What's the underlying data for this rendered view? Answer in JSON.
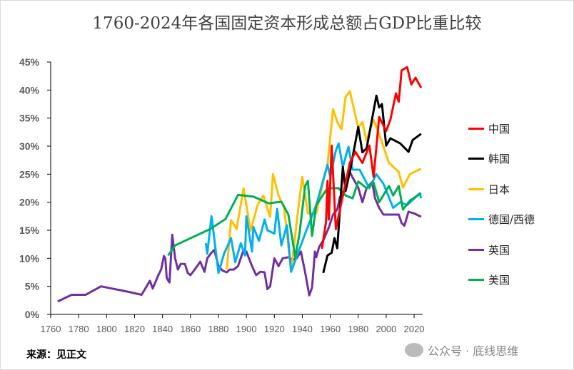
{
  "chart_data": {
    "type": "line",
    "title": "1760-2024年各国固定资本形成总额占GDP比重比较",
    "xlabel": "",
    "ylabel": "",
    "xlim": [
      1760,
      2026
    ],
    "ylim": [
      0,
      45
    ],
    "x_ticks": [
      "1760",
      "1780",
      "1800",
      "1820",
      "1840",
      "1860",
      "1880",
      "1900",
      "1920",
      "1940",
      "1960",
      "1980",
      "2000",
      "2020"
    ],
    "y_ticks": [
      "0%",
      "5%",
      "10%",
      "15%",
      "20%",
      "25%",
      "30%",
      "35%",
      "40%",
      "45%"
    ],
    "legend_position": "right",
    "grid": false,
    "series": [
      {
        "name": "中国",
        "color": "#ff0000",
        "points": [
          [
            1954,
            11.7
          ],
          [
            1957,
            16.5
          ],
          [
            1958,
            23.8
          ],
          [
            1959,
            16.9
          ],
          [
            1961,
            30.1
          ],
          [
            1964,
            15.2
          ],
          [
            1968,
            20
          ],
          [
            1974,
            27
          ],
          [
            1978,
            29
          ],
          [
            1983,
            27
          ],
          [
            1988,
            30.1
          ],
          [
            1991,
            24.5
          ],
          [
            1995,
            35.2
          ],
          [
            2000,
            32.7
          ],
          [
            2003,
            34.7
          ],
          [
            2007,
            39.4
          ],
          [
            2009,
            37.9
          ],
          [
            2011,
            43.5
          ],
          [
            2015,
            44.1
          ],
          [
            2018,
            41
          ],
          [
            2021,
            42.2
          ],
          [
            2025,
            40.4
          ]
        ]
      },
      {
        "name": "韩国",
        "color": "#000000",
        "points": [
          [
            1955,
            7.4
          ],
          [
            1958,
            10.5
          ],
          [
            1961,
            11
          ],
          [
            1963,
            13.6
          ],
          [
            1965,
            11.8
          ],
          [
            1969,
            26.3
          ],
          [
            1971,
            22
          ],
          [
            1974,
            25.4
          ],
          [
            1980,
            33.4
          ],
          [
            1983,
            28.9
          ],
          [
            1986,
            29.6
          ],
          [
            1993,
            39
          ],
          [
            1995,
            36.9
          ],
          [
            1997,
            37.5
          ],
          [
            2000,
            30.1
          ],
          [
            2003,
            31.4
          ],
          [
            2010,
            30.5
          ],
          [
            2016,
            29
          ],
          [
            2019,
            31.1
          ],
          [
            2025,
            32.2
          ]
        ]
      },
      {
        "name": "日本",
        "color": "#ffc000",
        "points": [
          [
            1886,
            8
          ],
          [
            1889,
            16.8
          ],
          [
            1893,
            15.2
          ],
          [
            1898,
            22.5
          ],
          [
            1903,
            14.9
          ],
          [
            1908,
            19.5
          ],
          [
            1912,
            21.2
          ],
          [
            1917,
            17.4
          ],
          [
            1919,
            25
          ],
          [
            1923,
            21.2
          ],
          [
            1927,
            19
          ],
          [
            1932,
            7.6
          ],
          [
            1936,
            16.5
          ],
          [
            1940,
            24.5
          ],
          [
            1944,
            18
          ],
          [
            1950,
            18
          ],
          [
            1955,
            23.7
          ],
          [
            1958,
            26.7
          ],
          [
            1962,
            36.6
          ],
          [
            1965,
            34.3
          ],
          [
            1968,
            33
          ],
          [
            1971,
            38.8
          ],
          [
            1974,
            39.8
          ],
          [
            1980,
            33.3
          ],
          [
            1983,
            34.3
          ],
          [
            1986,
            30.9
          ],
          [
            1991,
            34.7
          ],
          [
            1996,
            31.4
          ],
          [
            2002,
            27
          ],
          [
            2009,
            25.4
          ],
          [
            2012,
            22.6
          ],
          [
            2017,
            25
          ],
          [
            2025,
            26
          ]
        ]
      },
      {
        "name": "德国/西德",
        "color": "#00b0f0",
        "points": [
          [
            1871,
            12.7
          ],
          [
            1872,
            10.8
          ],
          [
            1875,
            17.5
          ],
          [
            1877,
            13.6
          ],
          [
            1880,
            7.4
          ],
          [
            1884,
            10.8
          ],
          [
            1889,
            13.6
          ],
          [
            1892,
            9.3
          ],
          [
            1896,
            12.7
          ],
          [
            1899,
            10.5
          ],
          [
            1900,
            17.5
          ],
          [
            1904,
            11.2
          ],
          [
            1905,
            15.6
          ],
          [
            1909,
            13.1
          ],
          [
            1913,
            16.9
          ],
          [
            1915,
            15
          ],
          [
            1920,
            14.4
          ],
          [
            1922,
            18.8
          ],
          [
            1925,
            12.3
          ],
          [
            1929,
            15.9
          ],
          [
            1932,
            7.6
          ],
          [
            1937,
            11
          ],
          [
            1942,
            14.4
          ],
          [
            1950,
            19.5
          ],
          [
            1958,
            26.7
          ],
          [
            1960,
            24.5
          ],
          [
            1964,
            29.2
          ],
          [
            1966,
            30.5
          ],
          [
            1969,
            26.3
          ],
          [
            1973,
            29.9
          ],
          [
            1976,
            25.8
          ],
          [
            1981,
            25.8
          ],
          [
            1988,
            22.5
          ],
          [
            1993,
            25
          ],
          [
            1998,
            23.3
          ],
          [
            2005,
            19
          ],
          [
            2010,
            20
          ],
          [
            2015,
            19.5
          ],
          [
            2024,
            21.6
          ],
          [
            2025,
            20.7
          ]
        ]
      },
      {
        "name": "英国",
        "color": "#7030a0",
        "points": [
          [
            1765,
            2.3
          ],
          [
            1775,
            3.5
          ],
          [
            1785,
            3.5
          ],
          [
            1796,
            5
          ],
          [
            1816,
            4
          ],
          [
            1825,
            3.5
          ],
          [
            1831,
            6
          ],
          [
            1833,
            4.6
          ],
          [
            1837,
            7
          ],
          [
            1839,
            8
          ],
          [
            1841,
            10.4
          ],
          [
            1842,
            10
          ],
          [
            1843,
            6.5
          ],
          [
            1845,
            5.7
          ],
          [
            1847,
            14.2
          ],
          [
            1849,
            10
          ],
          [
            1851,
            8
          ],
          [
            1853,
            9
          ],
          [
            1856,
            9
          ],
          [
            1858,
            7.4
          ],
          [
            1860,
            7
          ],
          [
            1863,
            8
          ],
          [
            1867,
            9.4
          ],
          [
            1870,
            7.6
          ],
          [
            1872,
            10
          ],
          [
            1875,
            11
          ],
          [
            1877,
            11.5
          ],
          [
            1880,
            8.6
          ],
          [
            1883,
            7.8
          ],
          [
            1886,
            7.5
          ],
          [
            1888,
            8
          ],
          [
            1891,
            8
          ],
          [
            1894,
            8.6
          ],
          [
            1898,
            11.5
          ],
          [
            1900,
            11.2
          ],
          [
            1904,
            8.6
          ],
          [
            1907,
            7
          ],
          [
            1910,
            7.6
          ],
          [
            1913,
            7.5
          ],
          [
            1915,
            4.5
          ],
          [
            1917,
            5
          ],
          [
            1920,
            10
          ],
          [
            1923,
            8.6
          ],
          [
            1926,
            10
          ],
          [
            1930,
            10.2
          ],
          [
            1933,
            9.7
          ],
          [
            1936,
            10
          ],
          [
            1939,
            11.2
          ],
          [
            1942,
            7.5
          ],
          [
            1945,
            3.4
          ],
          [
            1947,
            4.8
          ],
          [
            1949,
            11.2
          ],
          [
            1950,
            10.2
          ],
          [
            1952,
            12
          ],
          [
            1955,
            13.2
          ],
          [
            1959,
            15.5
          ],
          [
            1962,
            17.8
          ],
          [
            1965,
            18.7
          ],
          [
            1967,
            21
          ],
          [
            1969,
            21.2
          ],
          [
            1971,
            22.6
          ],
          [
            1974,
            25.4
          ],
          [
            1976,
            24.4
          ],
          [
            1980,
            22.6
          ],
          [
            1983,
            20
          ],
          [
            1986,
            22.5
          ],
          [
            1990,
            23.6
          ],
          [
            1992,
            20.7
          ],
          [
            1995,
            19
          ],
          [
            1998,
            17.8
          ],
          [
            2005,
            17.8
          ],
          [
            2009,
            17.8
          ],
          [
            2011,
            16.3
          ],
          [
            2013,
            15.8
          ],
          [
            2016,
            18.3
          ],
          [
            2020,
            18
          ],
          [
            2025,
            17.4
          ]
        ]
      },
      {
        "name": "美国",
        "color": "#00b050",
        "points": [
          [
            1844,
            10.5
          ],
          [
            1849,
            12.3
          ],
          [
            1874,
            15.2
          ],
          [
            1885,
            17
          ],
          [
            1894,
            21.3
          ],
          [
            1905,
            21
          ],
          [
            1916,
            19.8
          ],
          [
            1925,
            20.1
          ],
          [
            1930,
            17.8
          ],
          [
            1935,
            10.2
          ],
          [
            1938,
            14.4
          ],
          [
            1942,
            22.9
          ],
          [
            1944,
            23.8
          ],
          [
            1947,
            14
          ],
          [
            1950,
            19.5
          ],
          [
            1958,
            22.5
          ],
          [
            1966,
            22.5
          ],
          [
            1971,
            21.2
          ],
          [
            1976,
            20.7
          ],
          [
            1980,
            23.7
          ],
          [
            1986,
            22.5
          ],
          [
            1991,
            23.5
          ],
          [
            1995,
            20
          ],
          [
            2002,
            22.9
          ],
          [
            2005,
            21.2
          ],
          [
            2009,
            22.9
          ],
          [
            2012,
            18.7
          ],
          [
            2017,
            20.3
          ],
          [
            2025,
            21.6
          ]
        ]
      }
    ]
  },
  "footer": {
    "source": "来源：见正文",
    "watermark": "公众号 · 底线思维"
  }
}
